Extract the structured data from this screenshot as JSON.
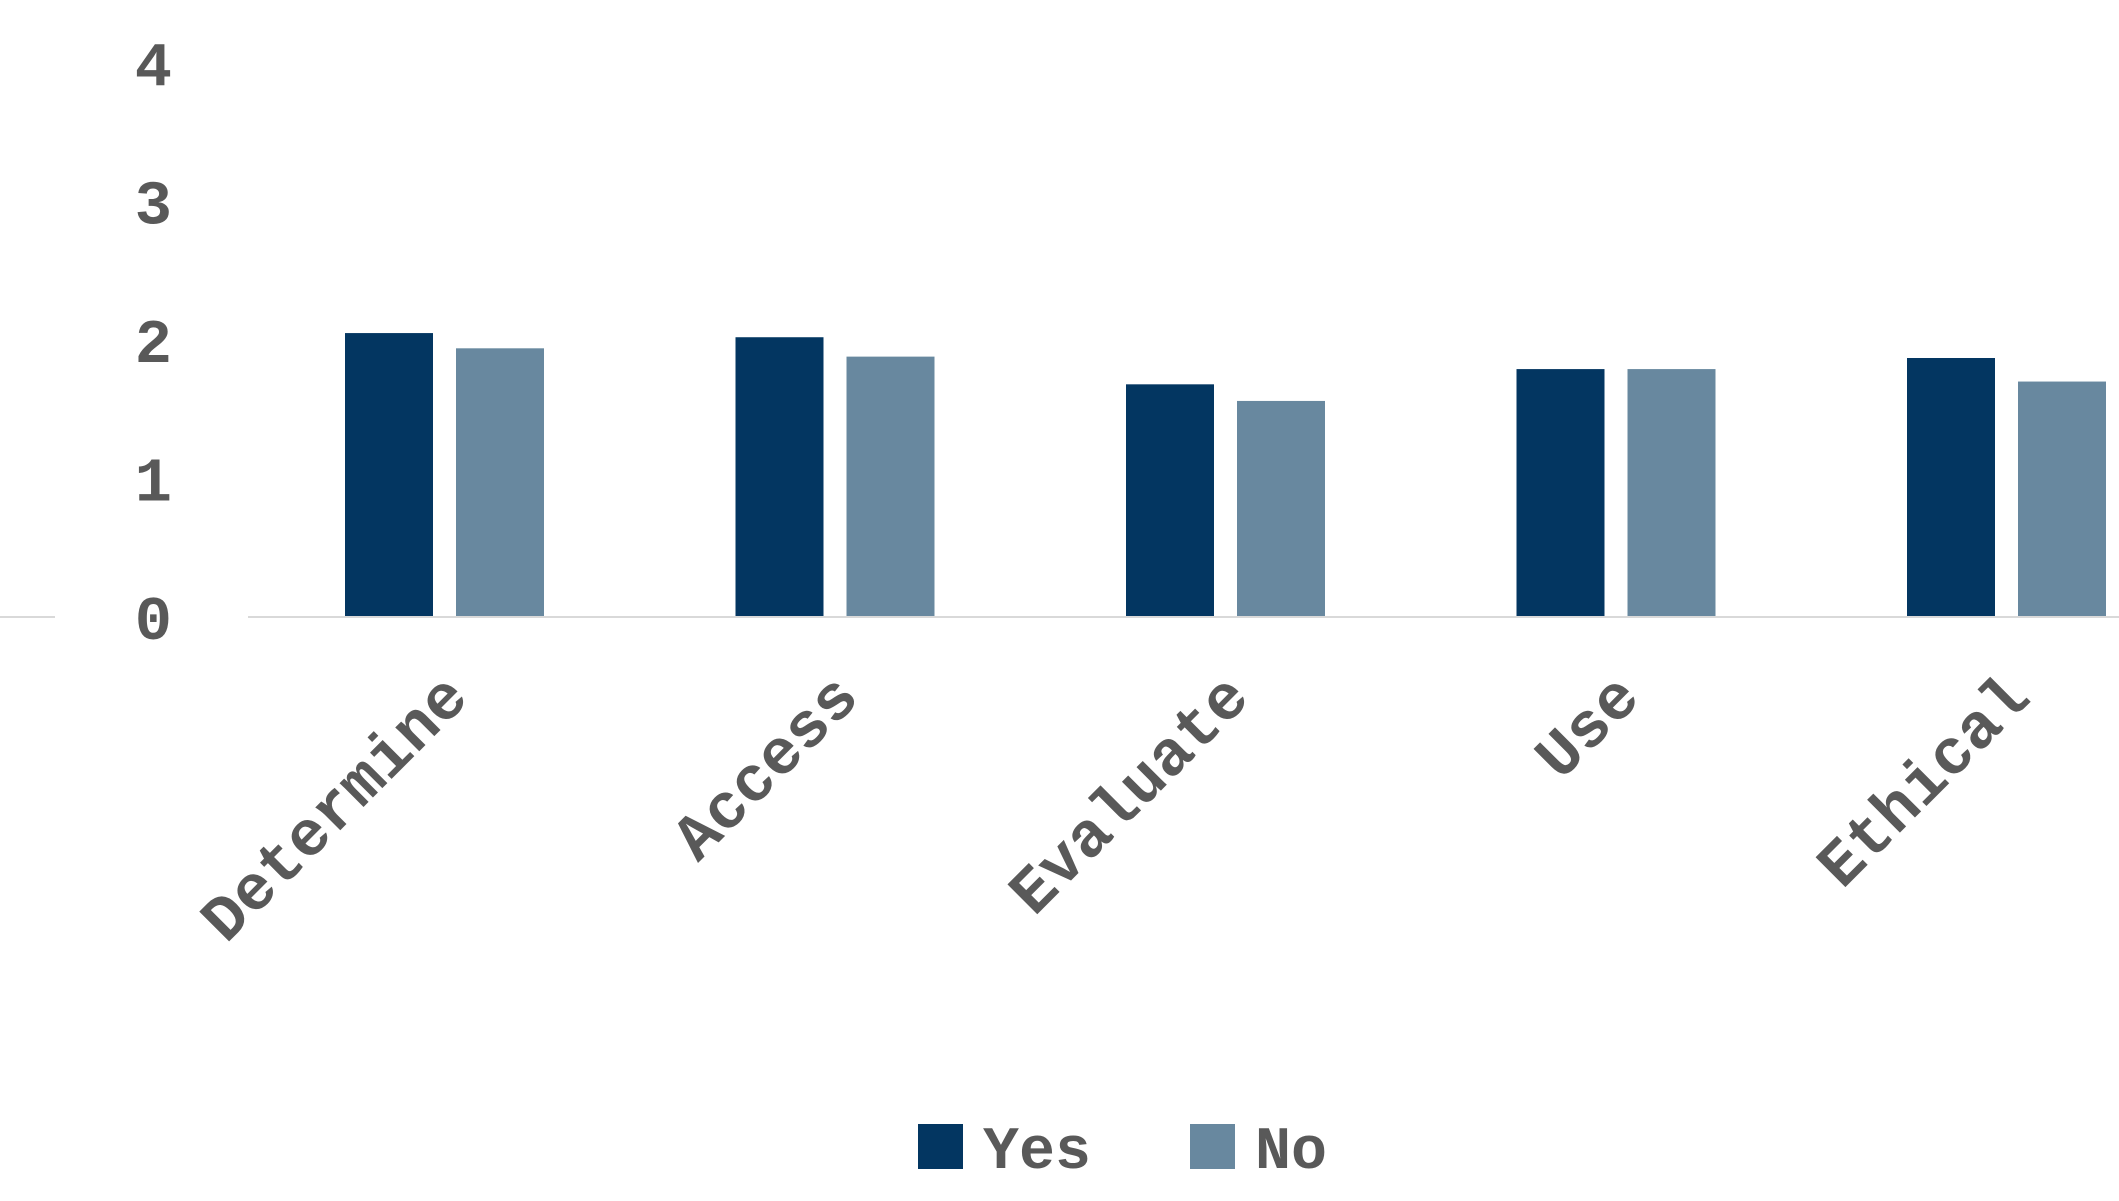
{
  "chart_data": {
    "type": "bar",
    "title": "",
    "xlabel": "",
    "ylabel": "",
    "categories": [
      "Determine",
      "Access",
      "Evaluate",
      "Use",
      "Ethical"
    ],
    "series": [
      {
        "name": "Yes",
        "color": "#033661",
        "values": [
          2.05,
          2.02,
          1.68,
          1.79,
          1.87
        ]
      },
      {
        "name": "No",
        "color": "#68889F",
        "values": [
          1.94,
          1.88,
          1.56,
          1.79,
          1.7
        ]
      }
    ],
    "ylim": [
      0,
      4
    ],
    "yticks": [
      "0",
      "1",
      "2",
      "3",
      "4"
    ],
    "grid": false,
    "legend": "bottom-center",
    "axis_color": "#D9D9D9",
    "text_color": "#595959"
  }
}
